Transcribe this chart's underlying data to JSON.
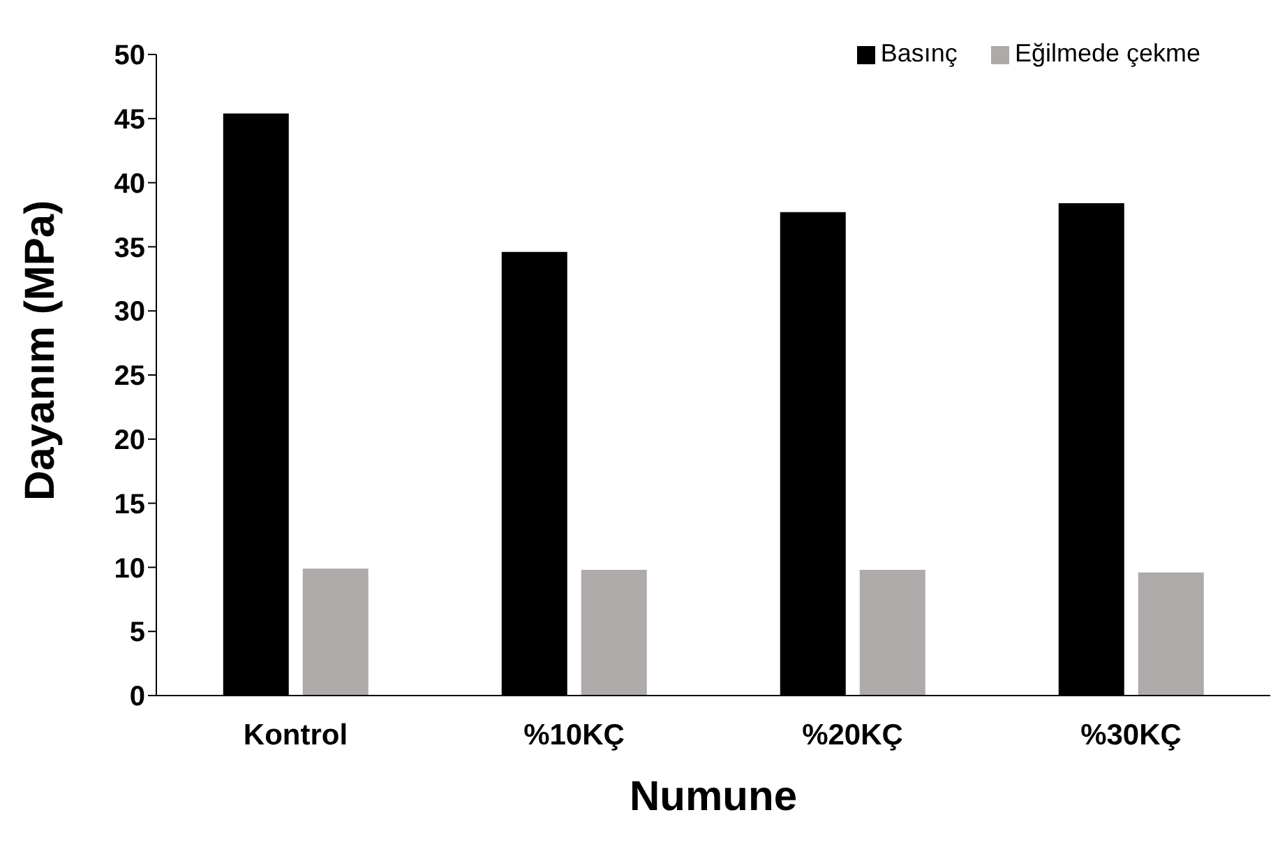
{
  "chart_data": {
    "type": "bar",
    "xlabel": "Numune",
    "ylabel": "Dayanım (MPa)",
    "categories": [
      "Kontrol",
      "%10KÇ",
      "%20KÇ",
      "%30KÇ"
    ],
    "series": [
      {
        "name": "Basınç",
        "color": "#000000",
        "values": [
          45.4,
          34.6,
          37.7,
          38.4
        ]
      },
      {
        "name": "Eğilmede çekme",
        "color": "#aeaaaa",
        "values": [
          9.9,
          9.8,
          9.8,
          9.6
        ]
      }
    ],
    "ylim": [
      0,
      50
    ],
    "yticks": [
      0,
      5,
      10,
      15,
      20,
      25,
      30,
      35,
      40,
      45,
      50
    ],
    "grid": false,
    "legend": "top right"
  }
}
